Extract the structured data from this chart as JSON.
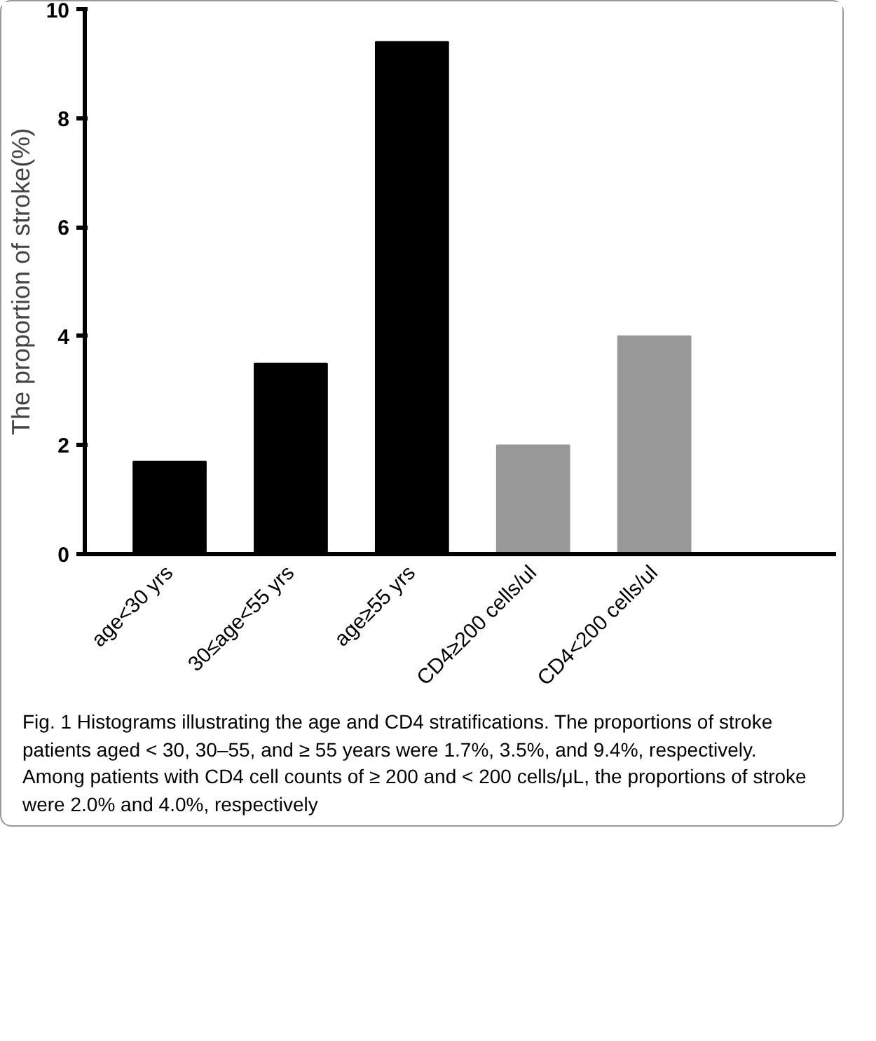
{
  "chart_data": {
    "type": "bar",
    "ylabel": "The proportion of stroke(%)",
    "categories": [
      "age<30 yrs",
      "30≤age<55 yrs",
      "age≥55 yrs",
      "CD4≥200 cells/ul",
      "CD4<200 cells/ul",
      null
    ],
    "values": [
      1.7,
      3.5,
      9.4,
      2.0,
      4.0,
      null
    ],
    "colors": [
      "#000000",
      "#000000",
      "#000000",
      "#999999",
      "#999999",
      "#999999"
    ],
    "ylim": [
      0,
      10
    ],
    "yticks": [
      0,
      2,
      4,
      6,
      8,
      10
    ],
    "grid": false,
    "annotations": [
      "Fig. 1  Histograms illustrating the age and CD4 stratifications. The proportions of stroke patients aged < 30, 30–55, and ≥ 55 years were 1.7%, 3.5%, and 9.4%, respectively. Among patients with CD4 cell counts of ≥ 200 and < 200 cells/μL, the proportions of stroke were 2.0% and 4.0%, respectively"
    ]
  }
}
